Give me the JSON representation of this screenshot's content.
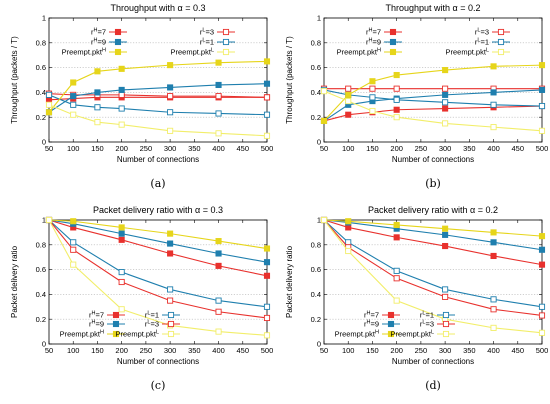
{
  "colors": {
    "rH7": "#e8312d",
    "rH9": "#1f7fae",
    "rL3": "#e8312d",
    "rL1": "#1f7fae",
    "preH": "#e6d51a",
    "preL": "#f2ee6a",
    "grid": "#b4b4b4"
  },
  "chart_data": [
    {
      "type": "line",
      "title": "Throughput with α = 0.3",
      "xlabel": "Number of connections",
      "ylabel": "Throughput (packets / T)",
      "sublabel": "(a)",
      "legend": "top",
      "grid": true,
      "xlim": [
        50,
        500
      ],
      "ylim": [
        0,
        1
      ],
      "xticks": [
        "50",
        "100",
        "150",
        "200",
        "250",
        "300",
        "350",
        "400",
        "450",
        "500"
      ],
      "yticks": [
        "0",
        "0.2",
        "0.4",
        "0.6",
        "0.8",
        "1"
      ],
      "x": [
        50,
        100,
        150,
        200,
        300,
        400,
        500
      ],
      "series": [
        {
          "key": "rH7",
          "name": "r",
          "sup": "H",
          "suffix": "=7",
          "marker": "square-filled",
          "values": [
            0.34,
            0.35,
            0.36,
            0.36,
            0.36,
            0.36,
            0.36
          ]
        },
        {
          "key": "rL3",
          "name": "r",
          "sup": "L",
          "suffix": "=3",
          "marker": "square-open",
          "values": [
            0.39,
            0.38,
            0.38,
            0.38,
            0.37,
            0.37,
            0.36
          ]
        },
        {
          "key": "rH9",
          "name": "r",
          "sup": "H",
          "suffix": "=9",
          "marker": "square-filled",
          "values": [
            0.24,
            0.37,
            0.4,
            0.42,
            0.44,
            0.46,
            0.47
          ]
        },
        {
          "key": "rL1",
          "name": "r",
          "sup": "L",
          "suffix": "=1",
          "marker": "square-open",
          "values": [
            0.38,
            0.3,
            0.28,
            0.27,
            0.24,
            0.23,
            0.22
          ]
        },
        {
          "key": "preH",
          "name": "Preempt.pkt",
          "sup": "H",
          "suffix": "",
          "marker": "square-filled",
          "values": [
            0.24,
            0.48,
            0.57,
            0.59,
            0.62,
            0.64,
            0.65
          ]
        },
        {
          "key": "preL",
          "name": "Preempt.pkt",
          "sup": "L",
          "suffix": "",
          "marker": "square-open",
          "values": [
            0.3,
            0.22,
            0.16,
            0.14,
            0.09,
            0.07,
            0.05
          ]
        }
      ]
    },
    {
      "type": "line",
      "title": "Throughput with α = 0.2",
      "xlabel": "Number of connections",
      "ylabel": "Throughput (packets / T)",
      "sublabel": "(b)",
      "legend": "top",
      "grid": true,
      "xlim": [
        50,
        500
      ],
      "ylim": [
        0,
        1
      ],
      "xticks": [
        "50",
        "100",
        "150",
        "200",
        "250",
        "300",
        "350",
        "400",
        "450",
        "500"
      ],
      "yticks": [
        "0",
        "0.2",
        "0.4",
        "0.6",
        "0.8",
        "1"
      ],
      "x": [
        50,
        100,
        150,
        200,
        300,
        400,
        500
      ],
      "series": [
        {
          "key": "rH7",
          "name": "r",
          "sup": "H",
          "suffix": "=7",
          "marker": "square-filled",
          "values": [
            0.17,
            0.22,
            0.24,
            0.26,
            0.27,
            0.28,
            0.29
          ]
        },
        {
          "key": "rL3",
          "name": "r",
          "sup": "L",
          "suffix": "=3",
          "marker": "square-open",
          "values": [
            0.43,
            0.43,
            0.43,
            0.43,
            0.43,
            0.43,
            0.43
          ]
        },
        {
          "key": "rH9",
          "name": "r",
          "sup": "H",
          "suffix": "=9",
          "marker": "square-filled",
          "values": [
            0.17,
            0.3,
            0.33,
            0.35,
            0.38,
            0.4,
            0.42
          ]
        },
        {
          "key": "rL1",
          "name": "r",
          "sup": "L",
          "suffix": "=1",
          "marker": "square-open",
          "values": [
            0.42,
            0.38,
            0.36,
            0.34,
            0.32,
            0.3,
            0.29
          ]
        },
        {
          "key": "preH",
          "name": "Preempt.pkt",
          "sup": "H",
          "suffix": "",
          "marker": "square-filled",
          "values": [
            0.17,
            0.38,
            0.49,
            0.54,
            0.58,
            0.61,
            0.62
          ]
        },
        {
          "key": "preL",
          "name": "Preempt.pkt",
          "sup": "L",
          "suffix": "",
          "marker": "square-open",
          "values": [
            0.41,
            0.33,
            0.25,
            0.2,
            0.15,
            0.12,
            0.09
          ]
        }
      ]
    },
    {
      "type": "line",
      "title": "Packet delivery ratio with α = 0.3",
      "xlabel": "Number of connections",
      "ylabel": "Packet delivery ratio",
      "sublabel": "(c)",
      "legend": "bottom-left",
      "grid": true,
      "xlim": [
        50,
        500
      ],
      "ylim": [
        0,
        1
      ],
      "xticks": [
        "50",
        "100",
        "150",
        "200",
        "250",
        "300",
        "350",
        "400",
        "450",
        "500"
      ],
      "yticks": [
        "0",
        "0.2",
        "0.4",
        "0.6",
        "0.8",
        "1"
      ],
      "x": [
        50,
        100,
        200,
        300,
        400,
        500
      ],
      "series": [
        {
          "key": "rH7",
          "name": "r",
          "sup": "H",
          "suffix": "=7",
          "marker": "square-filled",
          "values": [
            1.0,
            0.94,
            0.84,
            0.73,
            0.63,
            0.55
          ]
        },
        {
          "key": "rL1",
          "name": "r",
          "sup": "L",
          "suffix": "=1",
          "marker": "square-open",
          "values": [
            1.0,
            0.82,
            0.58,
            0.44,
            0.35,
            0.3
          ]
        },
        {
          "key": "rH9",
          "name": "r",
          "sup": "H",
          "suffix": "=9",
          "marker": "square-filled",
          "values": [
            1.0,
            0.97,
            0.89,
            0.81,
            0.73,
            0.66
          ]
        },
        {
          "key": "rL3",
          "name": "r",
          "sup": "L",
          "suffix": "=3",
          "marker": "square-open",
          "values": [
            1.0,
            0.76,
            0.5,
            0.35,
            0.26,
            0.21
          ]
        },
        {
          "key": "preH",
          "name": "Preempt.pkt",
          "sup": "H",
          "suffix": "",
          "marker": "square-filled",
          "values": [
            1.0,
            0.99,
            0.94,
            0.89,
            0.83,
            0.77
          ]
        },
        {
          "key": "preL",
          "name": "Preempt.pkt",
          "sup": "L",
          "suffix": "",
          "marker": "square-open",
          "values": [
            1.0,
            0.64,
            0.28,
            0.15,
            0.1,
            0.07
          ]
        }
      ]
    },
    {
      "type": "line",
      "title": "Packet delivery ratio with α = 0.2",
      "xlabel": "Number of connections",
      "ylabel": "Packet delivery ratio",
      "sublabel": "(d)",
      "legend": "bottom-left",
      "grid": true,
      "xlim": [
        50,
        500
      ],
      "ylim": [
        0,
        1
      ],
      "xticks": [
        "50",
        "100",
        "150",
        "200",
        "250",
        "300",
        "350",
        "400",
        "450",
        "500"
      ],
      "yticks": [
        "0",
        "0.2",
        "0.4",
        "0.6",
        "0.8",
        "1"
      ],
      "x": [
        50,
        100,
        200,
        300,
        400,
        500
      ],
      "series": [
        {
          "key": "rH7",
          "name": "r",
          "sup": "H",
          "suffix": "=7",
          "marker": "square-filled",
          "values": [
            1.0,
            0.94,
            0.86,
            0.79,
            0.71,
            0.64
          ]
        },
        {
          "key": "rL1",
          "name": "r",
          "sup": "L",
          "suffix": "=1",
          "marker": "square-open",
          "values": [
            1.0,
            0.82,
            0.59,
            0.44,
            0.36,
            0.3
          ]
        },
        {
          "key": "rH9",
          "name": "r",
          "sup": "H",
          "suffix": "=9",
          "marker": "square-filled",
          "values": [
            1.0,
            0.98,
            0.93,
            0.88,
            0.82,
            0.76
          ]
        },
        {
          "key": "rL3",
          "name": "r",
          "sup": "L",
          "suffix": "=3",
          "marker": "square-open",
          "values": [
            1.0,
            0.78,
            0.53,
            0.38,
            0.28,
            0.23
          ]
        },
        {
          "key": "preH",
          "name": "Preempt.pkt",
          "sup": "H",
          "suffix": "",
          "marker": "square-filled",
          "values": [
            1.0,
            0.99,
            0.96,
            0.93,
            0.9,
            0.87
          ]
        },
        {
          "key": "preL",
          "name": "Preempt.pkt",
          "sup": "L",
          "suffix": "",
          "marker": "square-open",
          "values": [
            1.0,
            0.75,
            0.35,
            0.2,
            0.13,
            0.09
          ]
        }
      ]
    }
  ]
}
